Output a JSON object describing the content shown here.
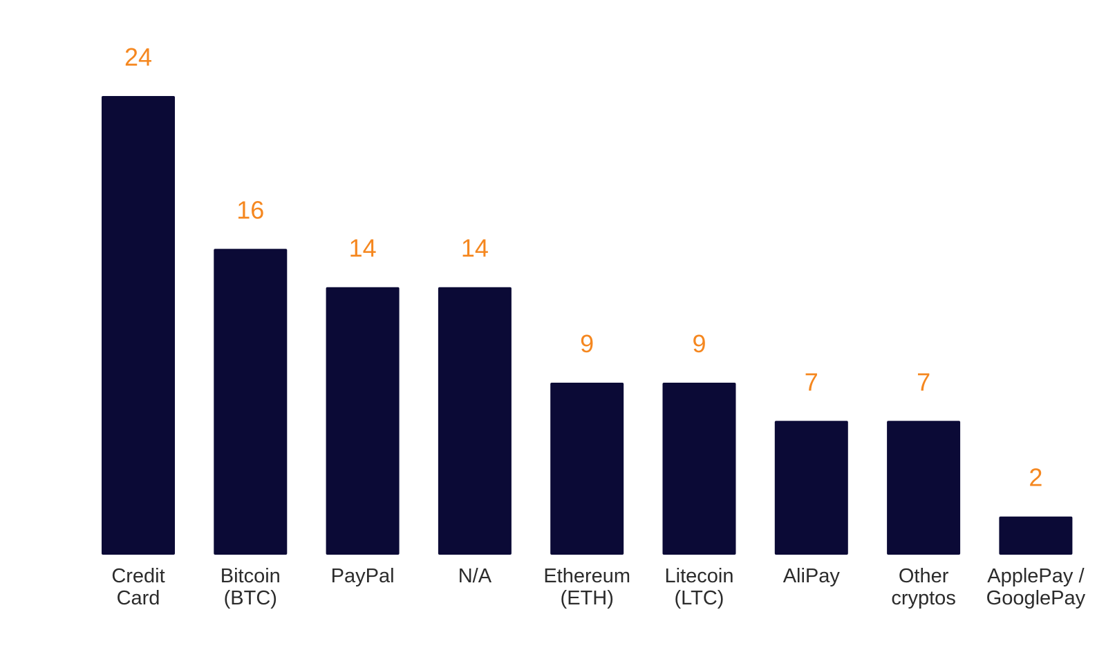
{
  "chart_data": {
    "type": "bar",
    "categories": [
      [
        "Credit",
        "Card"
      ],
      [
        "Bitcoin",
        "(BTC)"
      ],
      [
        "PayPal"
      ],
      [
        "N/A"
      ],
      [
        "Ethereum",
        "(ETH)"
      ],
      [
        "Litecoin",
        "(LTC)"
      ],
      [
        "AliPay"
      ],
      [
        "Other",
        "cryptos"
      ],
      [
        "ApplePay /",
        "GooglePay"
      ]
    ],
    "values": [
      24,
      16,
      14,
      14,
      9,
      9,
      7,
      7,
      2
    ],
    "ylim": [
      0,
      24
    ],
    "grid": false,
    "legend": "none",
    "bar_color": "#0b0a36",
    "value_label_color": "#f5871f",
    "title": "",
    "xlabel": "",
    "ylabel": ""
  }
}
